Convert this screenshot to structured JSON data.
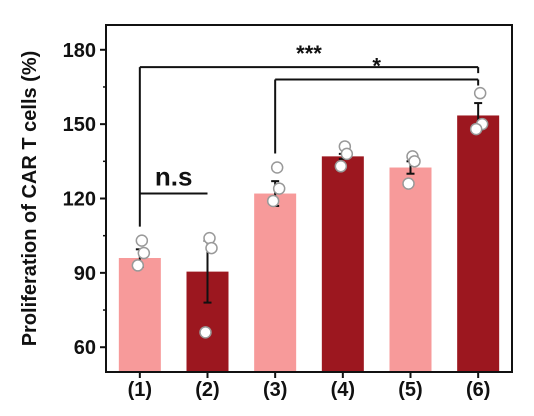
{
  "chart_data": {
    "type": "bar",
    "title": "",
    "xlabel": "",
    "ylabel": "Proliferation of CAR T cells (%)",
    "ylim": [
      50,
      190
    ],
    "yticks": [
      60,
      90,
      120,
      150,
      180
    ],
    "grid": false,
    "categories": [
      "(1)",
      "(2)",
      "(3)",
      "(4)",
      "(5)",
      "(6)"
    ],
    "values": [
      96,
      90.5,
      122,
      137,
      132.5,
      153.5
    ],
    "errors": [
      3.5,
      12.5,
      5,
      1,
      2.5,
      5
    ],
    "bar_colors": [
      "#f79a9a",
      "#9c171f",
      "#f79a9a",
      "#9c171f",
      "#f79a9a",
      "#9c171f"
    ],
    "points": [
      [
        103,
        98,
        93
      ],
      [
        104,
        100,
        66
      ],
      [
        132.5,
        124,
        119
      ],
      [
        141,
        138,
        133
      ],
      [
        137,
        135,
        126
      ],
      [
        162.5,
        150,
        148
      ]
    ],
    "significance": [
      {
        "from": "(1)",
        "to": "(2)",
        "label": "n.s"
      },
      {
        "from": "(1)",
        "to": "(6)",
        "label": "***"
      },
      {
        "from": "(3)",
        "to": "(6)",
        "label": "*"
      }
    ]
  }
}
